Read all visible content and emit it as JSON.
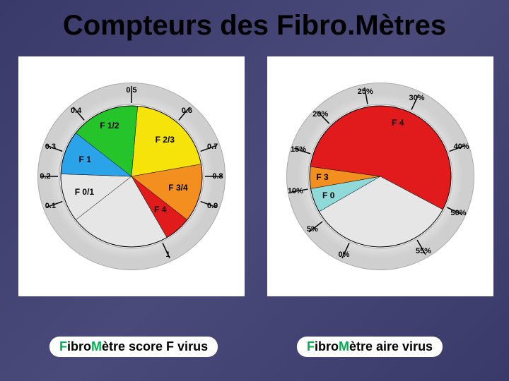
{
  "title": "Compteurs des Fibro.Mètres",
  "captions": {
    "left_prefix_F": "F",
    "left_mid": "ibro",
    "left_M": "M",
    "left_rest": "ètre score F virus",
    "right_prefix_F": "F",
    "right_mid": "ibro",
    "right_M": "M",
    "right_rest": "ètre aire virus"
  },
  "dial": {
    "outer_radius": 140,
    "bezel_outer": 132,
    "bezel_inner": 102,
    "face_radius": 100,
    "colors": {
      "bg": "#ffffff",
      "bezel_hi": "#f2f2f2",
      "bezel_lo": "#cfcfcf",
      "bezel_edge": "#aaaaaa",
      "tick": "#000000",
      "empty": "#e6e6e6"
    }
  },
  "left_dial": {
    "type": "gauge",
    "tick_labels": [
      {
        "v": "0.1",
        "ang": 200
      },
      {
        "v": "0.2",
        "ang": 180
      },
      {
        "v": "0.3",
        "ang": 160
      },
      {
        "v": "0.4",
        "ang": 130
      },
      {
        "v": "0.5",
        "ang": 90
      },
      {
        "v": "0.6",
        "ang": 50
      },
      {
        "v": "0.7",
        "ang": 20
      },
      {
        "v": "0.8",
        "ang": 0
      },
      {
        "v": "0.9",
        "ang": -20
      },
      {
        "v": "1",
        "ang": -65
      }
    ],
    "tick_r": 122,
    "segments": [
      {
        "label": "F 0/1",
        "start": 218,
        "end": 178,
        "color": "#e6e6e6",
        "lr": 70
      },
      {
        "label": "F 1",
        "start": 178,
        "end": 142,
        "color": "#2aa3e8",
        "lr": 70
      },
      {
        "label": "F 1/2",
        "start": 142,
        "end": 85,
        "color": "#26c42b",
        "lr": 78
      },
      {
        "label": "F 2/3",
        "start": 85,
        "end": 10,
        "color": "#f5e30a",
        "lr": 70
      },
      {
        "label": "F 3/4",
        "start": 10,
        "end": -38,
        "color": "#f38f1e",
        "lr": 68
      },
      {
        "label": "F 4",
        "start": -38,
        "end": -60,
        "color": "#e11b1b",
        "lr": 62
      },
      {
        "label": "",
        "start": -60,
        "end": -142,
        "color": "#e6e6e6",
        "lr": 0
      }
    ]
  },
  "right_dial": {
    "type": "gauge",
    "tick_labels": [
      {
        "v": "0%",
        "ang": 245
      },
      {
        "v": "5%",
        "ang": 218
      },
      {
        "v": "10%",
        "ang": 190
      },
      {
        "v": "15%",
        "ang": 162
      },
      {
        "v": "20%",
        "ang": 134
      },
      {
        "v": "25%",
        "ang": 100
      },
      {
        "v": "30%",
        "ang": 65
      },
      {
        "v": "40%",
        "ang": 20
      },
      {
        "v": "50%",
        "ang": -25
      },
      {
        "v": "55%",
        "ang": -60
      }
    ],
    "tick_r": 122,
    "segments": [
      {
        "label": "F 0",
        "start": 210,
        "end": 190,
        "color": "#8fd9d9",
        "lr": 78
      },
      {
        "label": "F 3",
        "start": 190,
        "end": 172,
        "color": "#f38f1e",
        "lr": 82
      },
      {
        "label": "F 4",
        "start": 172,
        "end": -28,
        "color": "#e11b1b",
        "lr": 80
      },
      {
        "label": "",
        "start": -28,
        "end": -150,
        "color": "#e6e6e6",
        "lr": 0
      }
    ]
  }
}
